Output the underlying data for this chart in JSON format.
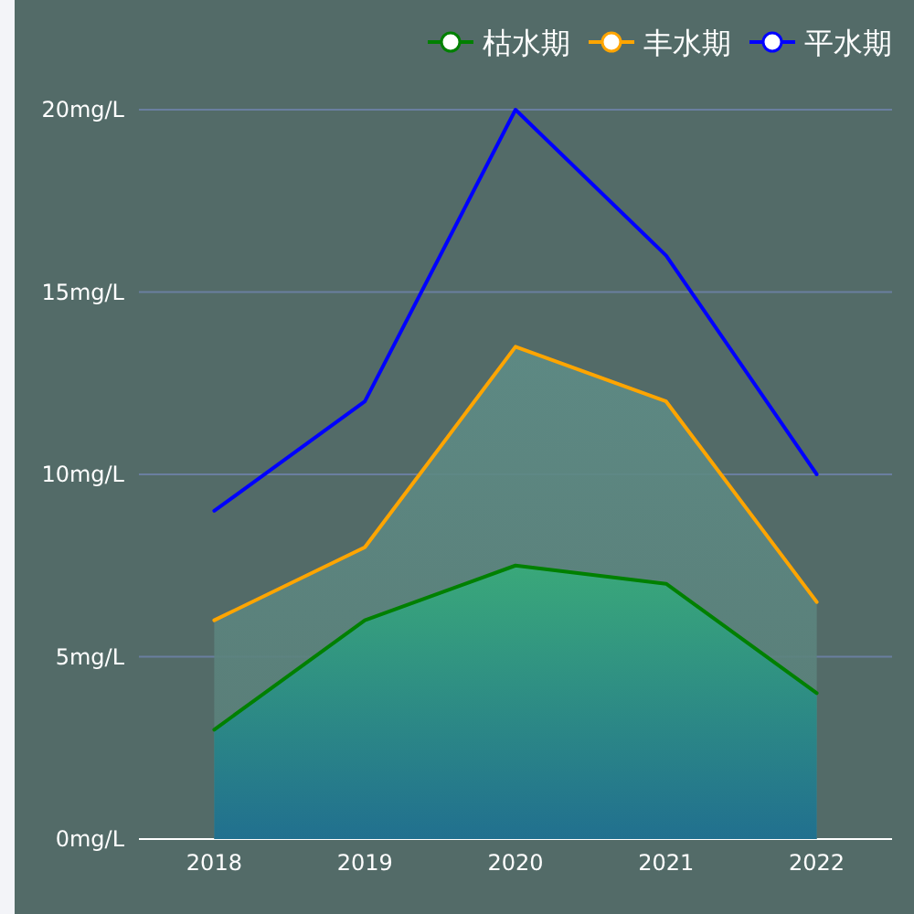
{
  "chart_data": {
    "type": "line",
    "categories": [
      "2018",
      "2019",
      "2020",
      "2021",
      "2022"
    ],
    "series": [
      {
        "name": "枯水期",
        "type": "area",
        "color": "#008000",
        "values": [
          3,
          6,
          7.5,
          7,
          4
        ]
      },
      {
        "name": "丰水期",
        "type": "area",
        "color": "#ffa500",
        "values": [
          6,
          8,
          13.5,
          12,
          6.5
        ]
      },
      {
        "name": "平水期",
        "color": "#0000ff",
        "values": [
          9,
          12,
          20,
          16,
          10
        ]
      }
    ],
    "ylim": [
      0,
      20
    ],
    "yticks": [
      {
        "value": 0,
        "label": "0mg/L"
      },
      {
        "value": 5,
        "label": "5mg/L"
      },
      {
        "value": 10,
        "label": "10mg/L"
      },
      {
        "value": 15,
        "label": "15mg/L"
      },
      {
        "value": 20,
        "label": "20mg/L"
      }
    ],
    "grid": "y",
    "legend": "top right",
    "marker": "none",
    "line_style": "solid"
  }
}
